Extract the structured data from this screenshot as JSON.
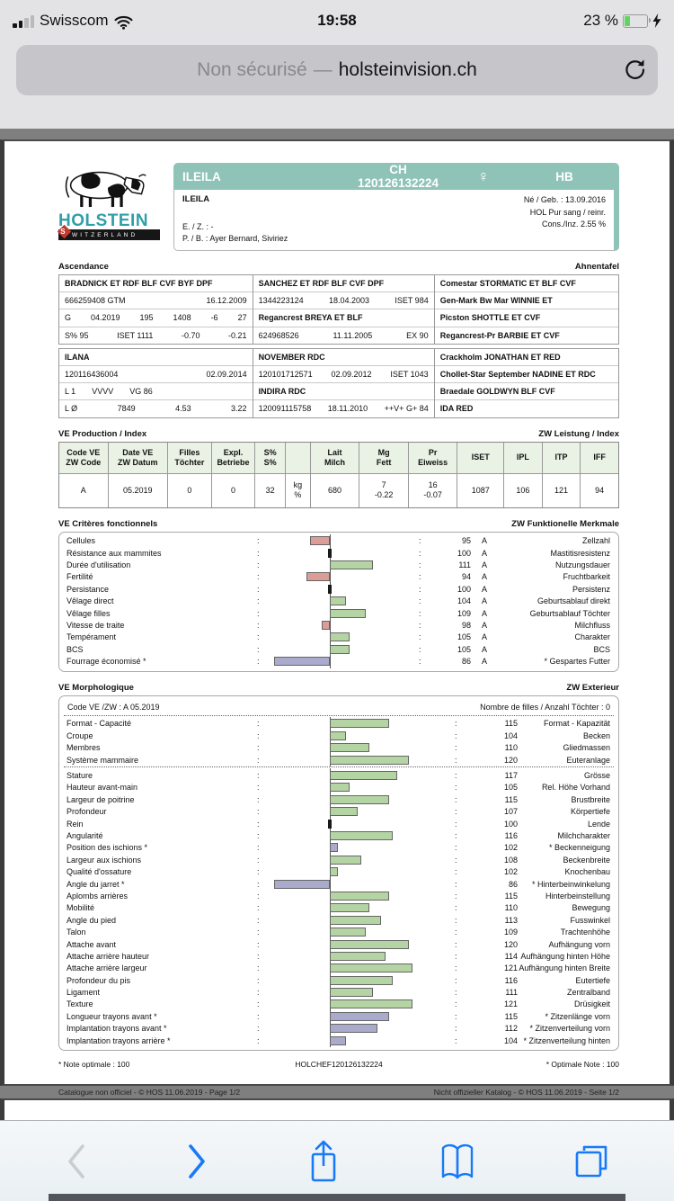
{
  "colors": {
    "teal": "#8fc3b8",
    "bar_green": "#b4d4a4",
    "bar_red": "#db9d98",
    "bar_purple": "#a9aacc",
    "table_header_green": "#e9f2e4",
    "toolbar_blue": "#187af8",
    "battery_green": "#63d365"
  },
  "status_bar": {
    "carrier": "Swisscom",
    "time": "19:58",
    "battery": "23 %"
  },
  "address_bar": {
    "security": "Non sécurisé",
    "separator": "—",
    "url": "holsteinvision.ch"
  },
  "logo": {
    "brand": "HOLSTEIN",
    "country": "WITZERLAND",
    "badge": "S"
  },
  "animal": {
    "name": "ILEILA",
    "id": "CH 120126132224",
    "sex_symbol": "♀",
    "herdbook": "HB",
    "name_line": "ILEILA",
    "born": "Né / Geb. : 13.09.2016",
    "breed": "HOL    Pur sang / reinr.",
    "consanguinity": "Cons./Inz. 2.55 %",
    "breeder": "E. / Z. : -",
    "owner": "P. / B. : Ayer Bernard, Siviriez"
  },
  "pedigree": {
    "title_fr": "Ascendance",
    "title_de": "Ahnentafel",
    "blocks": [
      {
        "cols": [
          {
            "rows": [
              {
                "parts": [
                  "BRADNICK  ET RDF BLF CVF BYF DPF"
                ],
                "bold": true
              },
              {
                "parts": [
                  "666259408  GTM",
                  "16.12.2009"
                ]
              },
              {
                "parts": [
                  "G",
                  "04.2019",
                  "195",
                  "1408",
                  "-6",
                  "27"
                ]
              },
              {
                "parts": [
                  "S% 95",
                  "ISET 1111",
                  "-0.70",
                  "-0.21"
                ]
              }
            ]
          },
          {
            "rows": [
              {
                "parts": [
                  "SANCHEZ  ET RDF BLF CVF DPF"
                ],
                "bold": true
              },
              {
                "parts": [
                  "1344223124",
                  "18.04.2003",
                  "ISET 984"
                ]
              },
              {
                "parts": [
                  "Regancrest BREYA  ET BLF"
                ],
                "bold": true
              },
              {
                "parts": [
                  "624968526",
                  "11.11.2005",
                  "EX 90"
                ]
              }
            ]
          },
          {
            "rows": [
              {
                "parts": [
                  "Comestar STORMATIC  ET BLF CVF"
                ],
                "bold": true
              },
              {
                "parts": [
                  "Gen-Mark Bw Mar WINNIE  ET"
                ],
                "bold": true
              },
              {
                "parts": [
                  "Picston SHOTTLE  ET CVF"
                ],
                "bold": true
              },
              {
                "parts": [
                  "Regancrest-Pr BARBIE  ET CVF"
                ],
                "bold": true
              }
            ]
          }
        ]
      },
      {
        "cols": [
          {
            "rows": [
              {
                "parts": [
                  "ILANA"
                ],
                "bold": true
              },
              {
                "parts": [
                  "120116436004",
                  "02.09.2014"
                ]
              },
              {
                "parts": [
                  "L 1",
                  "VVVV",
                  "VG 86"
                ],
                "spread": false
              },
              {
                "parts": [
                  "L Ø",
                  "7849",
                  "4.53",
                  "3.22"
                ]
              }
            ]
          },
          {
            "rows": [
              {
                "parts": [
                  "NOVEMBER  RDC"
                ],
                "bold": true
              },
              {
                "parts": [
                  "120101712571",
                  "02.09.2012",
                  "ISET 1043"
                ]
              },
              {
                "parts": [
                  "INDIRA  RDC"
                ],
                "bold": true
              },
              {
                "parts": [
                  "120091115758",
                  "18.11.2010",
                  "++V+  G+ 84"
                ]
              }
            ]
          },
          {
            "rows": [
              {
                "parts": [
                  "Crackholm JONATHAN  ET RED"
                ],
                "bold": true
              },
              {
                "parts": [
                  "Chollet-Star September NADINE  ET RDC"
                ],
                "bold": true
              },
              {
                "parts": [
                  "Braedale GOLDWYN  BLF CVF"
                ],
                "bold": true
              },
              {
                "parts": [
                  "IDA  RED"
                ],
                "bold": true
              }
            ]
          }
        ]
      }
    ]
  },
  "production": {
    "title_fr": "VE Production / Index",
    "title_de": "ZW Leistung / Index",
    "columns": [
      {
        "header": [
          "Code VE",
          "ZW Code"
        ],
        "value": [
          "A"
        ],
        "w": 9
      },
      {
        "header": [
          "Date VE",
          "ZW Datum"
        ],
        "value": [
          "05.2019"
        ],
        "w": 11
      },
      {
        "header": [
          "Filles",
          "Töchter"
        ],
        "value": [
          "0"
        ],
        "w": 8
      },
      {
        "header": [
          "Expl.",
          "Betriebe"
        ],
        "value": [
          "0"
        ],
        "w": 8
      },
      {
        "header": [
          "S%",
          "S%"
        ],
        "value": [
          "32"
        ],
        "w": 5.5
      },
      {
        "header": [
          "",
          ""
        ],
        "value": [
          "kg",
          "%"
        ],
        "w": 4.5
      },
      {
        "header": [
          "Lait",
          "Milch"
        ],
        "value": [
          "680"
        ],
        "w": 9
      },
      {
        "header": [
          "Mg",
          "Fett"
        ],
        "value": [
          "7",
          "-0.22"
        ],
        "w": 9
      },
      {
        "header": [
          "Pr",
          "Eiweiss"
        ],
        "value": [
          "16",
          "-0.07"
        ],
        "w": 9
      },
      {
        "header": [
          "ISET"
        ],
        "value": [
          "1087"
        ],
        "w": 8.5
      },
      {
        "header": [
          "IPL"
        ],
        "value": [
          "106"
        ],
        "w": 7
      },
      {
        "header": [
          "ITP"
        ],
        "value": [
          "121"
        ],
        "w": 7
      },
      {
        "header": [
          "IFF"
        ],
        "value": [
          "94"
        ],
        "w": 7
      }
    ]
  },
  "charts": {
    "functional": {
      "title_fr": "VE Critères fonctionnels",
      "title_de": "ZW Funktionelle Merkmale",
      "rows": [
        {
          "fr": "Cellules",
          "de": "Zellzahl",
          "value": 95,
          "grade": "A",
          "color": "red"
        },
        {
          "fr": "Résistance aux mammites",
          "de": "Mastitisresistenz",
          "value": 100,
          "grade": "A",
          "color": "none"
        },
        {
          "fr": "Durée d'utilisation",
          "de": "Nutzungsdauer",
          "value": 111,
          "grade": "A",
          "color": "green"
        },
        {
          "fr": "Fertilité",
          "de": "Fruchtbarkeit",
          "value": 94,
          "grade": "A",
          "color": "red"
        },
        {
          "fr": "Persistance",
          "de": "Persistenz",
          "value": 100,
          "grade": "A",
          "color": "none"
        },
        {
          "fr": "Vêlage direct",
          "de": "Geburtsablauf direkt",
          "value": 104,
          "grade": "A",
          "color": "green"
        },
        {
          "fr": "Vêlage filles",
          "de": "Geburtsablauf Töchter",
          "value": 109,
          "grade": "A",
          "color": "green"
        },
        {
          "fr": "Vitesse de traite",
          "de": "Milchfluss",
          "value": 98,
          "grade": "A",
          "color": "red"
        },
        {
          "fr": "Tempérament",
          "de": "Charakter",
          "value": 105,
          "grade": "A",
          "color": "green"
        },
        {
          "fr": "BCS",
          "de": "BCS",
          "value": 105,
          "grade": "A",
          "color": "green"
        },
        {
          "fr": "Fourrage économisé *",
          "de": "* Gespartes Futter",
          "value": 86,
          "grade": "A",
          "color": "purple"
        }
      ]
    },
    "morphology": {
      "title_fr": "VE Morphologique",
      "title_de": "ZW Exterieur",
      "code_line": "Code VE /ZW : A 05.2019",
      "daughters_line": "Nombre de filles / Anzahl Töchter : 0",
      "summary_rows": [
        {
          "fr": "Format - Capacité",
          "de": "Format - Kapazität",
          "value": 115,
          "color": "green"
        },
        {
          "fr": "Croupe",
          "de": "Becken",
          "value": 104,
          "color": "green"
        },
        {
          "fr": "Membres",
          "de": "Gliedmassen",
          "value": 110,
          "color": "green"
        },
        {
          "fr": "Système mammaire",
          "de": "Euteranlage",
          "value": 120,
          "color": "green"
        }
      ],
      "detail_rows": [
        {
          "fr": "Stature",
          "de": "Grösse",
          "value": 117,
          "color": "green"
        },
        {
          "fr": "Hauteur avant-main",
          "de": "Rel. Höhe Vorhand",
          "value": 105,
          "color": "green"
        },
        {
          "fr": "Largeur de poitrine",
          "de": "Brustbreite",
          "value": 115,
          "color": "green"
        },
        {
          "fr": "Profondeur",
          "de": "Körpertiefe",
          "value": 107,
          "color": "green"
        },
        {
          "fr": "Rein",
          "de": "Lende",
          "value": 100,
          "color": "none"
        },
        {
          "fr": "Angularité",
          "de": "Milchcharakter",
          "value": 116,
          "color": "green"
        },
        {
          "fr": "Position des ischions *",
          "de": "* Beckenneigung",
          "value": 102,
          "color": "purple"
        },
        {
          "fr": "Largeur aux ischions",
          "de": "Beckenbreite",
          "value": 108,
          "color": "green"
        },
        {
          "fr": "Qualité d'ossature",
          "de": "Knochenbau",
          "value": 102,
          "color": "green"
        },
        {
          "fr": "Angle du jarret *",
          "de": "* Hinterbeinwinkelung",
          "value": 86,
          "color": "purple"
        },
        {
          "fr": "Aplombs arrières",
          "de": "Hinterbeinstellung",
          "value": 115,
          "color": "green"
        },
        {
          "fr": "Mobilité",
          "de": "Bewegung",
          "value": 110,
          "color": "green"
        },
        {
          "fr": "Angle du pied",
          "de": "Fusswinkel",
          "value": 113,
          "color": "green"
        },
        {
          "fr": "Talon",
          "de": "Trachtenhöhe",
          "value": 109,
          "color": "green"
        },
        {
          "fr": "Attache avant",
          "de": "Aufhängung vorn",
          "value": 120,
          "color": "green"
        },
        {
          "fr": "Attache arrière hauteur",
          "de": "Aufhängung hinten Höhe",
          "value": 114,
          "color": "green"
        },
        {
          "fr": "Attache arrière largeur",
          "de": "Aufhängung hinten Breite",
          "value": 121,
          "color": "green"
        },
        {
          "fr": "Profondeur du pis",
          "de": "Eutertiefe",
          "value": 116,
          "color": "green"
        },
        {
          "fr": "Ligament",
          "de": "Zentralband",
          "value": 111,
          "color": "green"
        },
        {
          "fr": "Texture",
          "de": "Drüsigkeit",
          "value": 121,
          "color": "green"
        },
        {
          "fr": "Longueur trayons avant *",
          "de": "* Zitzenlänge vorn",
          "value": 115,
          "color": "purple"
        },
        {
          "fr": "Implantation trayons avant *",
          "de": "* Zitzenverteilung vorn",
          "value": 112,
          "color": "purple"
        },
        {
          "fr": "Implantation trayons arrière *",
          "de": "* Zitzenverteilung hinten",
          "value": 104,
          "color": "purple"
        }
      ]
    }
  },
  "chart_data": [
    {
      "type": "bar",
      "orientation": "horizontal",
      "baseline": 100,
      "title": "VE Critères fonctionnels / ZW Funktionelle Merkmale",
      "categories": [
        "Cellules",
        "Résistance aux mammites",
        "Durée d'utilisation",
        "Fertilité",
        "Persistance",
        "Vêlage direct",
        "Vêlage filles",
        "Vitesse de traite",
        "Tempérament",
        "BCS",
        "Fourrage économisé *"
      ],
      "values": [
        95,
        100,
        111,
        94,
        100,
        104,
        109,
        98,
        105,
        105,
        86
      ]
    },
    {
      "type": "bar",
      "orientation": "horizontal",
      "baseline": 100,
      "title": "VE Morphologique / ZW Exterieur",
      "categories": [
        "Format - Capacité",
        "Croupe",
        "Membres",
        "Système mammaire",
        "Stature",
        "Hauteur avant-main",
        "Largeur de poitrine",
        "Profondeur",
        "Rein",
        "Angularité",
        "Position des ischions *",
        "Largeur aux ischions",
        "Qualité d'ossature",
        "Angle du jarret *",
        "Aplombs arrières",
        "Mobilité",
        "Angle du pied",
        "Talon",
        "Attache avant",
        "Attache arrière hauteur",
        "Attache arrière largeur",
        "Profondeur du pis",
        "Ligament",
        "Texture",
        "Longueur trayons avant *",
        "Implantation trayons avant *",
        "Implantation trayons arrière *"
      ],
      "values": [
        115,
        104,
        110,
        120,
        117,
        105,
        115,
        107,
        100,
        116,
        102,
        108,
        102,
        86,
        115,
        110,
        113,
        109,
        120,
        114,
        121,
        116,
        111,
        121,
        115,
        112,
        104
      ]
    }
  ],
  "footnotes": {
    "fr": "* Note optimale : 100",
    "center": "HOLCHEF120126132224",
    "de": "* Optimale Note : 100"
  },
  "footer": {
    "fr": "Catalogue non officiel  -  © HOS 11.06.2019  -  Page 1/2",
    "de": "Nicht offizieller Katalog  -  © HOS 11.06.2019  -  Seite 1/2"
  }
}
